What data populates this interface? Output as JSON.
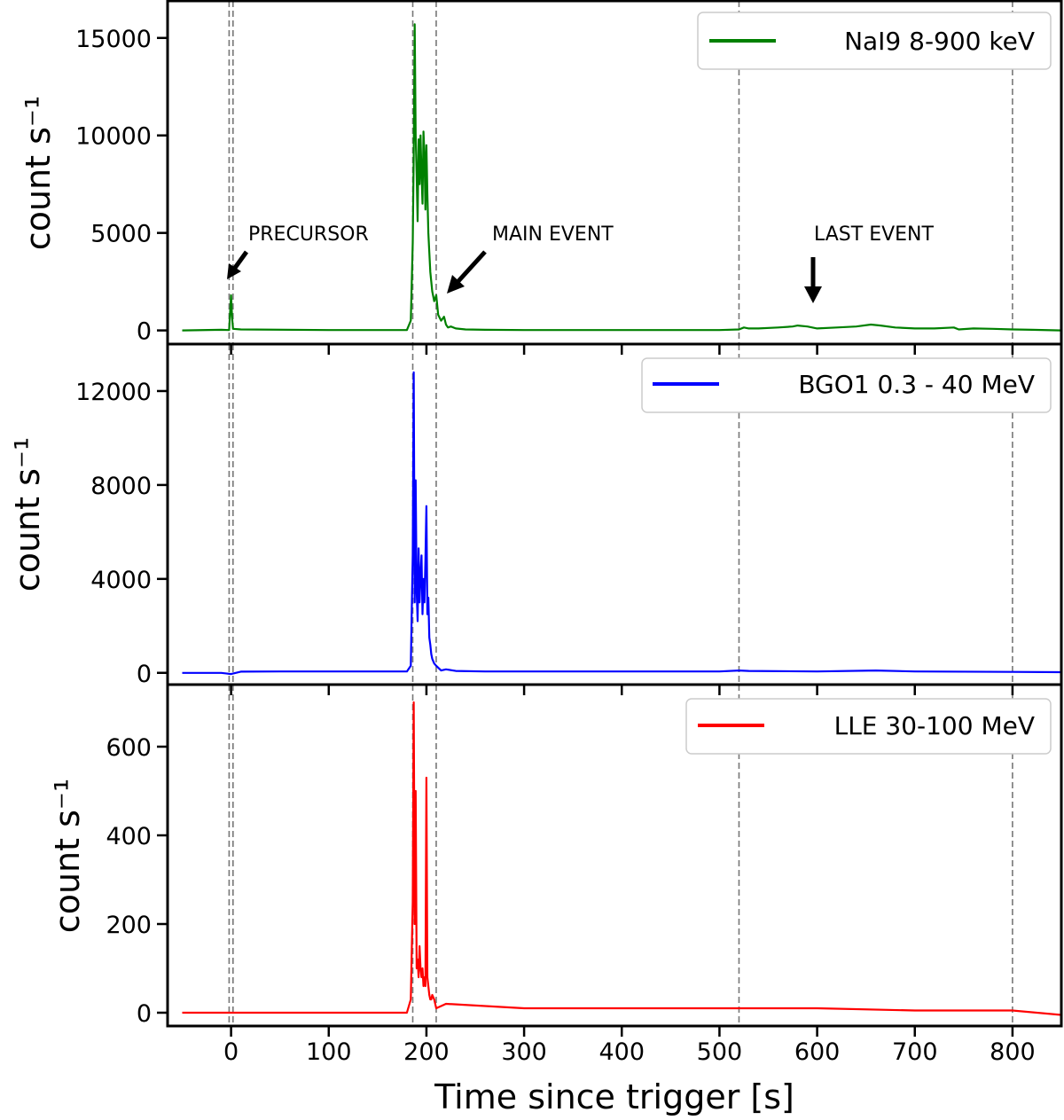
{
  "chart_data": [
    {
      "type": "line",
      "panel": "top",
      "series": [
        {
          "name": "NaI9 8-900 keV",
          "color": "#008000",
          "x": [
            -50,
            -10,
            -2,
            0,
            1,
            2,
            10,
            100,
            180,
            184,
            186,
            187,
            188,
            189,
            190,
            191,
            192,
            193,
            194,
            195,
            196,
            197,
            198,
            199,
            200,
            201,
            202,
            203,
            204,
            205,
            206,
            208,
            210,
            212,
            215,
            218,
            220,
            222,
            225,
            230,
            240,
            260,
            300,
            400,
            500,
            520,
            525,
            530,
            540,
            560,
            575,
            580,
            590,
            600,
            620,
            640,
            655,
            665,
            680,
            700,
            720,
            740,
            745,
            760,
            780,
            800,
            820,
            850
          ],
          "y": [
            0,
            30,
            20,
            1800,
            700,
            80,
            50,
            20,
            20,
            500,
            4500,
            9000,
            15700,
            10000,
            8000,
            5600,
            9800,
            7500,
            10000,
            8000,
            6500,
            10200,
            9000,
            6200,
            9500,
            7000,
            5000,
            4000,
            3000,
            2500,
            2000,
            1500,
            1800,
            800,
            500,
            700,
            300,
            150,
            200,
            100,
            50,
            30,
            20,
            20,
            20,
            50,
            150,
            100,
            100,
            150,
            200,
            250,
            200,
            100,
            150,
            200,
            300,
            250,
            150,
            100,
            100,
            150,
            50,
            100,
            80,
            50,
            30,
            0
          ]
        }
      ],
      "ylim": [
        -700,
        16900
      ],
      "yticks": [
        0,
        5000,
        10000,
        15000
      ],
      "ylabel": "count s⁻¹"
    },
    {
      "type": "line",
      "panel": "middle",
      "series": [
        {
          "name": "BGO1 0.3 - 40 MeV",
          "color": "#0000ff",
          "x": [
            -50,
            -10,
            0,
            10,
            50,
            150,
            180,
            184,
            186,
            187,
            188,
            189,
            190,
            191,
            192,
            193,
            194,
            195,
            196,
            197,
            198,
            199,
            200,
            201,
            202,
            203,
            204,
            205,
            206,
            208,
            210,
            215,
            220,
            230,
            260,
            300,
            400,
            500,
            520,
            530,
            600,
            660,
            700,
            800,
            850
          ],
          "y": [
            0,
            0,
            -50,
            50,
            60,
            60,
            60,
            300,
            5000,
            12800,
            3000,
            8200,
            3500,
            2200,
            5300,
            3000,
            4200,
            5000,
            2500,
            4000,
            3000,
            4800,
            7100,
            2500,
            3200,
            1500,
            1200,
            800,
            600,
            400,
            300,
            100,
            150,
            80,
            60,
            60,
            60,
            60,
            100,
            80,
            60,
            100,
            60,
            40,
            30
          ]
        }
      ],
      "ylim": [
        -500,
        14000
      ],
      "yticks": [
        0,
        4000,
        8000,
        12000
      ],
      "ylabel": "count s⁻¹"
    },
    {
      "type": "line",
      "panel": "bottom",
      "series": [
        {
          "name": "LLE 30-100 MeV",
          "color": "#ff0000",
          "x": [
            -50,
            0,
            100,
            180,
            184,
            186,
            187,
            188,
            189,
            190,
            191,
            192,
            193,
            194,
            195,
            196,
            197,
            198,
            199,
            200,
            201,
            202,
            203,
            204,
            205,
            206,
            208,
            210,
            220,
            300,
            400,
            500,
            600,
            700,
            800,
            850
          ],
          "y": [
            0,
            0,
            0,
            0,
            30,
            250,
            700,
            200,
            500,
            100,
            120,
            80,
            150,
            100,
            80,
            100,
            60,
            80,
            60,
            530,
            80,
            60,
            40,
            30,
            30,
            40,
            30,
            10,
            20,
            10,
            10,
            10,
            10,
            5,
            5,
            -5
          ]
        }
      ],
      "ylim": [
        -30,
        740
      ],
      "yticks": [
        0,
        200,
        400,
        600
      ],
      "ylabel": "count s⁻¹"
    }
  ],
  "xaxis": {
    "xlim": [
      -65,
      850
    ],
    "xticks": [
      0,
      100,
      200,
      300,
      400,
      500,
      600,
      700,
      800
    ],
    "xlabel": "Time since trigger [s]"
  },
  "vlines": [
    -2,
    2,
    186,
    210,
    520,
    800
  ],
  "annotations": [
    {
      "text": "PRECURSOR",
      "arrow": "diagonal"
    },
    {
      "text": "MAIN EVENT",
      "arrow": "diagonal"
    },
    {
      "text": "LAST EVENT",
      "arrow": "down"
    }
  ]
}
